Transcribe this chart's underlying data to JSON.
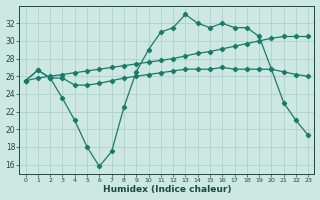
{
  "xlabel": "Humidex (Indice chaleur)",
  "bg_color": "#cce8e0",
  "line_color": "#1a7a6a",
  "grid_color": "#aacccc",
  "ylim": [
    15,
    34
  ],
  "xlim": [
    -0.5,
    23.5
  ],
  "yticks": [
    16,
    18,
    20,
    22,
    24,
    26,
    28,
    30,
    32
  ],
  "xticks": [
    0,
    1,
    2,
    3,
    4,
    5,
    6,
    7,
    8,
    9,
    10,
    11,
    12,
    13,
    14,
    15,
    16,
    17,
    18,
    19,
    20,
    21,
    22,
    23
  ],
  "line_straight_x": [
    0,
    1,
    2,
    3,
    4,
    5,
    6,
    7,
    8,
    9,
    10,
    11,
    12,
    13,
    14,
    15,
    16,
    17,
    18,
    19,
    20,
    21,
    22,
    23
  ],
  "line_straight_y": [
    25.5,
    25.8,
    26.0,
    26.2,
    26.4,
    26.6,
    26.8,
    27.0,
    27.2,
    27.4,
    27.6,
    27.8,
    28.0,
    28.3,
    28.6,
    28.8,
    29.1,
    29.4,
    29.7,
    30.0,
    30.3,
    30.5,
    30.5,
    30.5
  ],
  "line_mid_x": [
    0,
    1,
    2,
    3,
    4,
    5,
    6,
    7,
    8,
    9,
    10,
    11,
    12,
    13,
    14,
    15,
    16,
    17,
    18,
    19,
    20,
    21,
    22,
    23
  ],
  "line_mid_y": [
    25.5,
    26.7,
    25.8,
    25.8,
    25.0,
    25.0,
    25.2,
    25.5,
    25.8,
    26.0,
    26.2,
    26.4,
    26.6,
    26.8,
    26.8,
    26.8,
    27.0,
    26.8,
    26.8,
    26.8,
    26.8,
    26.5,
    26.2,
    26.0
  ],
  "line_zigzag_x": [
    0,
    1,
    2,
    3,
    4,
    5,
    6,
    7,
    8,
    9,
    10,
    11,
    12,
    13,
    14,
    15,
    16,
    17,
    18,
    19,
    20,
    21,
    22,
    23
  ],
  "line_zigzag_y": [
    25.5,
    26.7,
    25.8,
    23.5,
    21.0,
    18.0,
    15.8,
    17.5,
    22.5,
    26.5,
    29.0,
    31.0,
    31.5,
    33.0,
    32.0,
    31.5,
    32.0,
    31.5,
    31.5,
    30.5,
    26.8,
    23.0,
    21.0,
    19.3
  ]
}
